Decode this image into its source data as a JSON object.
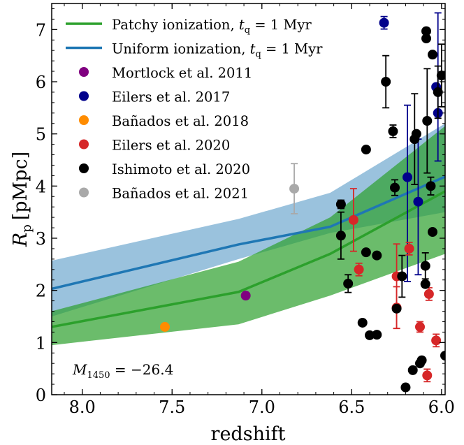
{
  "chart_data": {
    "type": "scatter",
    "title": "",
    "xlabel": "redshift",
    "ylabel_main": "R",
    "ylabel_sub": "p",
    "ylabel_unit": "[pMpc]",
    "xlim": [
      8.17,
      5.98
    ],
    "ylim": [
      0,
      7.5
    ],
    "x_ticks": [
      8.0,
      7.5,
      7.0,
      6.5,
      6.0
    ],
    "x_tick_labels": [
      "8.0",
      "7.5",
      "7.0",
      "6.5",
      "6.0"
    ],
    "y_ticks": [
      0,
      1,
      2,
      3,
      4,
      5,
      6,
      7
    ],
    "y_tick_labels": [
      "0",
      "1",
      "2",
      "3",
      "4",
      "5",
      "6",
      "7"
    ],
    "legend_position": "top-left",
    "annotation": {
      "main": "M",
      "sub": "1450",
      "rest": " = −26.4"
    },
    "bands": [
      {
        "name": "uniform-band",
        "color": "#1f77b4",
        "opacity": 0.45,
        "x": [
          8.17,
          7.13,
          6.62,
          5.98
        ],
        "lower": [
          1.5,
          2.6,
          3.1,
          3.5
        ],
        "upper": [
          2.57,
          3.37,
          3.87,
          5.2
        ]
      },
      {
        "name": "patchy-band",
        "color": "#2ca02c",
        "opacity": 0.7,
        "x": [
          8.17,
          7.13,
          6.62,
          5.98
        ],
        "lower": [
          0.95,
          1.35,
          1.9,
          2.7
        ],
        "upper": [
          1.6,
          2.55,
          3.4,
          5.15
        ]
      }
    ],
    "lines": [
      {
        "name": "Uniform ionization",
        "legend_label": "Uniform ionization, ",
        "legend_math": "t",
        "legend_math_sub": "q",
        "legend_rest": " = 1 Myr",
        "color": "#1f77b4",
        "x": [
          8.17,
          7.13,
          6.62,
          5.98
        ],
        "y": [
          2.03,
          2.88,
          3.22,
          4.18
        ]
      },
      {
        "name": "Patchy ionization",
        "legend_label": "Patchy ionization, ",
        "legend_math": "t",
        "legend_math_sub": "q",
        "legend_rest": " = 1 Myr",
        "color": "#2ca02c",
        "x": [
          8.17,
          7.13,
          6.62,
          5.98
        ],
        "y": [
          1.3,
          1.97,
          2.7,
          3.9
        ]
      }
    ],
    "series": [
      {
        "name": "Mortlock et al. 2011",
        "color": "#800080",
        "points": [
          {
            "x": 7.09,
            "y": 1.9
          }
        ]
      },
      {
        "name": "Eilers et al. 2017",
        "color": "#00008b",
        "points": [
          {
            "x": 6.32,
            "y": 7.13,
            "err_lo": 0.12,
            "err_hi": 0.12
          },
          {
            "x": 6.19,
            "y": 4.17,
            "err_lo": 2.0,
            "err_hi": 1.38
          },
          {
            "x": 6.13,
            "y": 3.7,
            "err_lo": 1.4,
            "err_hi": 1.2
          },
          {
            "x": 6.03,
            "y": 5.9
          },
          {
            "x": 6.02,
            "y": 5.4,
            "err_lo": 0.92,
            "err_hi": 1.92
          }
        ]
      },
      {
        "name": "Bañados et al. 2018",
        "color": "#ff8c00",
        "points": [
          {
            "x": 7.54,
            "y": 1.3
          }
        ]
      },
      {
        "name": "Eilers et al. 2020",
        "color": "#d62728",
        "points": [
          {
            "x": 6.49,
            "y": 3.35,
            "err_lo": 0.6,
            "err_hi": 0.6
          },
          {
            "x": 6.46,
            "y": 2.4,
            "err_lo": 0.12,
            "err_hi": 0.12
          },
          {
            "x": 6.25,
            "y": 2.27,
            "err_lo": 1.0,
            "err_hi": 0.62
          },
          {
            "x": 6.25,
            "y": 1.67,
            "err_lo": 0.4,
            "err_hi": 0.4
          },
          {
            "x": 6.18,
            "y": 2.8,
            "err_lo": 0.12,
            "err_hi": 0.12
          },
          {
            "x": 6.12,
            "y": 1.3,
            "err_lo": 0.1,
            "err_hi": 0.1
          },
          {
            "x": 6.08,
            "y": 0.37,
            "err_lo": 0.12,
            "err_hi": 0.12
          },
          {
            "x": 6.07,
            "y": 1.93,
            "err_lo": 0.12,
            "err_hi": 0.12
          },
          {
            "x": 6.03,
            "y": 1.04,
            "err_lo": 0.12,
            "err_hi": 0.12
          }
        ]
      },
      {
        "name": "Ishimoto et al. 2020",
        "color": "#000000",
        "points": [
          {
            "x": 6.56,
            "y": 3.65,
            "err_lo": 0.08,
            "err_hi": 0.08
          },
          {
            "x": 6.56,
            "y": 3.05,
            "err_lo": 0.45,
            "err_hi": 0.45
          },
          {
            "x": 6.52,
            "y": 2.13,
            "err_lo": 0.17,
            "err_hi": 0.17
          },
          {
            "x": 6.42,
            "y": 4.7
          },
          {
            "x": 6.42,
            "y": 2.73
          },
          {
            "x": 6.36,
            "y": 2.67
          },
          {
            "x": 6.4,
            "y": 1.14
          },
          {
            "x": 6.36,
            "y": 1.15
          },
          {
            "x": 6.44,
            "y": 1.38
          },
          {
            "x": 6.31,
            "y": 6.0,
            "err_lo": 0.5,
            "err_hi": 0.5
          },
          {
            "x": 6.27,
            "y": 5.05,
            "err_lo": 0.12,
            "err_hi": 0.12
          },
          {
            "x": 6.26,
            "y": 3.97,
            "err_lo": 0.15,
            "err_hi": 0.15
          },
          {
            "x": 6.25,
            "y": 1.65
          },
          {
            "x": 6.22,
            "y": 2.27,
            "err_lo": 0.4,
            "err_hi": 0.4
          },
          {
            "x": 6.2,
            "y": 0.14
          },
          {
            "x": 6.16,
            "y": 0.47
          },
          {
            "x": 6.15,
            "y": 4.9,
            "err_lo": 0.87,
            "err_hi": 0.87
          },
          {
            "x": 6.14,
            "y": 5.0
          },
          {
            "x": 6.12,
            "y": 0.6
          },
          {
            "x": 6.11,
            "y": 0.66
          },
          {
            "x": 6.09,
            "y": 2.47,
            "err_lo": 0.25,
            "err_hi": 0.25
          },
          {
            "x": 6.09,
            "y": 2.12
          },
          {
            "x": 6.085,
            "y": 6.83
          },
          {
            "x": 6.085,
            "y": 6.97
          },
          {
            "x": 6.08,
            "y": 5.25,
            "err_lo": 1.0,
            "err_hi": 1.0
          },
          {
            "x": 6.06,
            "y": 4.0,
            "err_lo": 0.17,
            "err_hi": 0.17
          },
          {
            "x": 6.05,
            "y": 3.12
          },
          {
            "x": 6.05,
            "y": 6.52
          },
          {
            "x": 6.02,
            "y": 5.8,
            "err_lo": 0.5,
            "err_hi": 0.5
          },
          {
            "x": 6.0,
            "y": 6.12,
            "err_lo": 0.6,
            "err_hi": 0.6
          },
          {
            "x": 5.98,
            "y": 0.75
          }
        ]
      },
      {
        "name": "Bañados et al. 2021",
        "color": "#a9a9a9",
        "points": [
          {
            "x": 6.82,
            "y": 3.95,
            "err_lo": 0.48,
            "err_hi": 0.48
          }
        ]
      }
    ]
  }
}
